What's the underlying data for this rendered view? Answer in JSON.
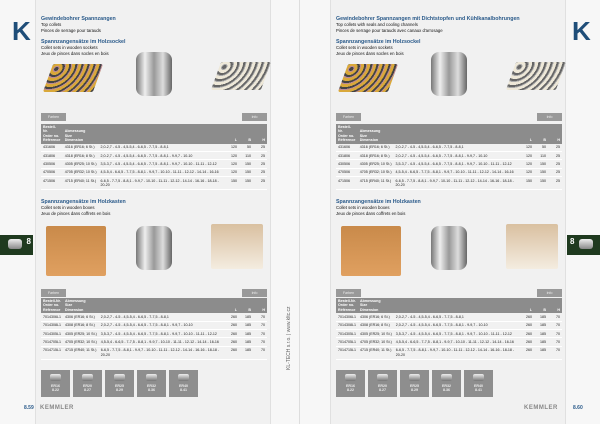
{
  "brand": {
    "logo": "K",
    "tab": "8",
    "side_text": "KL-TECH s.r.o. | www.kltc.cz",
    "footer": "KEMMLER"
  },
  "table_header": {
    "col1": "Bestell-Nr.\nOrder no.\nRéférence",
    "col2": "Abmessung\nSize\nDimension",
    "l": "L",
    "b": "B",
    "h": "H"
  },
  "pages": [
    {
      "page_no": "8.59",
      "title": "Gewindebohrer Spannzangen",
      "title_en": "Top collets",
      "title_fr": "Pinces de serrage pour tarauds",
      "sections": [
        {
          "heading": "Spannzangensätze im Holzsockel",
          "sub_en": "Collet sets in wooden sockets",
          "sub_fr": "Jeux de pinces dans socles en bois",
          "btn_left": "Farben",
          "btn_right": "Info",
          "rows": [
            [
              "431606",
              "4316 (ER16; 6 St.)",
              "2,0-2,7 - 4-5 - 4,5-5,4 - 6-6,5 - 7-7,5 - 8-8,1",
              "120",
              "50",
              "25"
            ],
            [
              "431806",
              "4318 (ER16; 8 St.)",
              "2,0-2,7 - 4-5 - 4,5-5,4 - 6-6,5 - 7-7,5 - 8-8,1 - 9-9,7 - 10-10",
              "120",
              "110",
              "25"
            ],
            [
              "430506",
              "4305 (ER25; 10 St.)",
              "3,5-3,7 - 4-5 - 4,5-5,4 - 6-6,5 - 7-7,5 - 8-8,1 - 9-9,7 - 10-10 - 11-11 - 12-12",
              "120",
              "150",
              "25"
            ],
            [
              "470506",
              "4705 (ER32; 10 St.)",
              "4,5-5,4 - 6-6,5 - 7-7,5 - 8-8,1 - 9-9,7 - 10-10 - 11-11 - 12-12 - 14-14 - 16-16",
              "120",
              "150",
              "25"
            ],
            [
              "471506",
              "4715 (ER40; 11 St.)",
              "6-6,5 - 7-7,5 - 8-8,1 - 9-9,7 - 10-10 - 11-11 - 12-12 - 14-14 - 16-16 - 18-18 - 20-20",
              "150",
              "150",
              "25"
            ]
          ]
        },
        {
          "heading": "Spannzangensätze im Holzkasten",
          "sub_en": "Collet sets in wooden boxes",
          "sub_fr": "Jeux de pinces dans coffrets en bois",
          "btn_left": "Farben",
          "btn_right": "Info",
          "rows": [
            [
              "7014306L1",
              "4306 (ER16; 6 St.)",
              "2,0-2,7 - 4-5 - 4,5-5,4 - 6-6,5 - 7-7,5 - 8-8,1",
              "260",
              "185",
              "70"
            ],
            [
              "7014308L1",
              "4308 (ER16; 8 St.)",
              "2,0-2,7 - 4-5 - 4,5-5,4 - 6-6,5 - 7-7,5 - 8-8,1 - 9-9,7 - 10-10",
              "260",
              "185",
              "70"
            ],
            [
              "7014305L1",
              "4305 (ER25; 10 St.)",
              "3,5-3,7 - 4-5 - 4,5-5,4 - 6-6,5 - 7-7,5 - 8-8,1 - 9-9,7 - 10-10 - 11-11 - 12-12",
              "260",
              "185",
              "70"
            ],
            [
              "7014705L1",
              "4705 (ER32; 10 St.)",
              "4,5-5,4 - 6-6,5 - 7-7,5 - 8-8,1 - 9-9,7 - 10-10 - 11-11 - 12-12 - 14-14 - 16-16",
              "260",
              "185",
              "70"
            ],
            [
              "7014715L1",
              "4715 (ER40; 11 St.)",
              "6-6,5 - 7-7,5 - 8-8,1 - 9-9,7 - 10-10 - 11-11 - 12-12 - 14-14 - 16-16 - 18-18 - 20-20",
              "260",
              "185",
              "70"
            ]
          ]
        }
      ],
      "icons": [
        {
          "name": "ER16",
          "ref": "8.22"
        },
        {
          "name": "ER20",
          "ref": "8.27"
        },
        {
          "name": "ER25",
          "ref": "8.29"
        },
        {
          "name": "ER32",
          "ref": "8.36"
        },
        {
          "name": "ER40",
          "ref": "8.41"
        }
      ]
    },
    {
      "page_no": "8.60",
      "title": "Gewindebohrer Spannzangen mit Dichtstopfen und Kühlkanalbohrungen",
      "title_en": "Top collets with seals and cooling channels",
      "title_fr": "Pinces de serrage pour tarauds avec canaux d'arrosage",
      "sections": [
        {
          "heading": "Spannzangensätze im Holzsockel",
          "sub_en": "Collet sets in wooden sockets",
          "sub_fr": "Jeux de pinces dans socles en bois",
          "btn_left": "Farben",
          "btn_right": "Info",
          "rows": [
            [
              "431606",
              "4316 (ER16; 6 St.)",
              "2,0-2,7 - 4-5 - 4,5-5,4 - 6-6,5 - 7-7,5 - 8-8,1",
              "120",
              "50",
              "25"
            ],
            [
              "431806",
              "4318 (ER16; 8 St.)",
              "2,0-2,7 - 4-5 - 4,5-5,4 - 6-6,5 - 7-7,5 - 8-8,1 - 9-9,7 - 10-10",
              "120",
              "110",
              "25"
            ],
            [
              "430506",
              "4305 (ER25; 10 St.)",
              "3,5-3,7 - 4-5 - 4,5-5,4 - 6-6,5 - 7-7,5 - 8-8,1 - 9-9,7 - 10-10 - 11-11 - 12-12",
              "120",
              "150",
              "25"
            ],
            [
              "470506",
              "4705 (ER32; 10 St.)",
              "4,5-5,4 - 6-6,5 - 7-7,5 - 8-8,1 - 9-9,7 - 10-10 - 11-11 - 12-12 - 14-14 - 16-16",
              "120",
              "150",
              "25"
            ],
            [
              "471506",
              "4715 (ER40; 11 St.)",
              "6-6,5 - 7-7,5 - 8-8,1 - 9-9,7 - 10-10 - 11-11 - 12-12 - 14-14 - 16-16 - 18-18 - 20-20",
              "150",
              "150",
              "25"
            ]
          ]
        },
        {
          "heading": "Spannzangensätze im Holzkasten",
          "sub_en": "Collet sets in wooden boxes",
          "sub_fr": "Jeux de pinces dans coffrets en bois",
          "btn_left": "Farben",
          "btn_right": "Info",
          "rows": [
            [
              "7014306L1",
              "4306 (ER16; 6 St.)",
              "2,0-2,7 - 4-5 - 4,5-5,4 - 6-6,5 - 7-7,5 - 8-8,1",
              "260",
              "185",
              "70"
            ],
            [
              "7014308L1",
              "4308 (ER16; 8 St.)",
              "2,0-2,7 - 4-5 - 4,5-5,4 - 6-6,5 - 7-7,5 - 8-8,1 - 9-9,7 - 10-10",
              "260",
              "185",
              "70"
            ],
            [
              "7014305L1",
              "4305 (ER25; 10 St.)",
              "3,5-3,7 - 4-5 - 4,5-5,4 - 6-6,5 - 7-7,5 - 8-8,1 - 9-9,7 - 10-10 - 11-11 - 12-12",
              "260",
              "185",
              "70"
            ],
            [
              "7014705L1",
              "4705 (ER32; 10 St.)",
              "4,5-5,4 - 6-6,5 - 7-7,5 - 8-8,1 - 9-9,7 - 10-10 - 11-11 - 12-12 - 14-14 - 16-16",
              "260",
              "185",
              "70"
            ],
            [
              "7014715L1",
              "4715 (ER40; 11 St.)",
              "6-6,5 - 7-7,5 - 8-8,1 - 9-9,7 - 10-10 - 11-11 - 12-12 - 14-14 - 16-16 - 18-18 - 20-20",
              "260",
              "185",
              "70"
            ]
          ]
        }
      ],
      "icons": [
        {
          "name": "ER16",
          "ref": "8.22"
        },
        {
          "name": "ER20",
          "ref": "8.27"
        },
        {
          "name": "ER25",
          "ref": "8.29"
        },
        {
          "name": "ER32",
          "ref": "8.36"
        },
        {
          "name": "ER40",
          "ref": "8.41"
        }
      ]
    }
  ]
}
